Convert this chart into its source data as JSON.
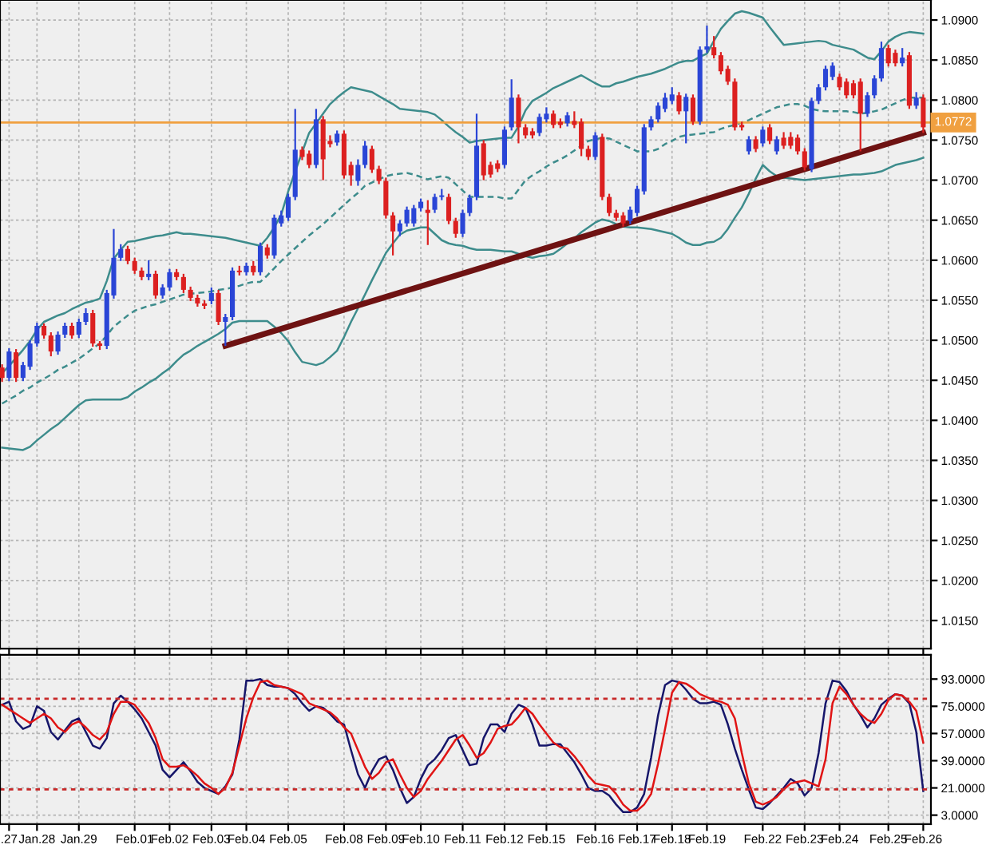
{
  "chart_data": [
    {
      "type": "candlestick",
      "tick_labels": "y",
      "grid": true,
      "categories": [
        null,
        null,
        null,
        null,
        null,
        null,
        null,
        null,
        null,
        null,
        null,
        null,
        null,
        null,
        null,
        null,
        null,
        null,
        null,
        null,
        null,
        null,
        null,
        null,
        null,
        null,
        null,
        null,
        null,
        null,
        null,
        null,
        null,
        null,
        null,
        null,
        null,
        null,
        null,
        null,
        null,
        null,
        null,
        null,
        null,
        null,
        null,
        null,
        null,
        null,
        null,
        null,
        null,
        null,
        null,
        null,
        null,
        null,
        null,
        null,
        null,
        null,
        null,
        null,
        null,
        null,
        null,
        null,
        null,
        null,
        null,
        null,
        null,
        null,
        null,
        null,
        null,
        null,
        null,
        null,
        null,
        null,
        null,
        null,
        null,
        null,
        null,
        null,
        null,
        null,
        null,
        null,
        null,
        null,
        null,
        null,
        null,
        null,
        null,
        null,
        null,
        null,
        null,
        null,
        null,
        null,
        null,
        null,
        null,
        null,
        null,
        null,
        null,
        null,
        null,
        null,
        null,
        null,
        null,
        null,
        null,
        null,
        null,
        null,
        null,
        null,
        null,
        null,
        null,
        null,
        null,
        null,
        null
      ],
      "ohlc": [
        [
          1.0466,
          1.047,
          1.0448,
          1.0453
        ],
        [
          1.0453,
          1.049,
          1.0449,
          1.0486
        ],
        [
          1.0485,
          1.0489,
          1.0448,
          1.0453
        ],
        [
          1.0453,
          1.0473,
          1.0449,
          1.0469
        ],
        [
          1.0467,
          1.05,
          1.0463,
          1.0496
        ],
        [
          1.0496,
          1.0522,
          1.0492,
          1.0518
        ],
        [
          1.0518,
          1.0521,
          1.0502,
          1.0506
        ],
        [
          1.0506,
          1.051,
          1.048,
          1.0486
        ],
        [
          1.0486,
          1.0511,
          1.0482,
          1.0507
        ],
        [
          1.0507,
          1.0522,
          1.0503,
          1.0518
        ],
        [
          1.0518,
          1.0522,
          1.0502,
          1.0506
        ],
        [
          1.0507,
          1.0527,
          1.0503,
          1.0523
        ],
        [
          1.0523,
          1.054,
          1.0519,
          1.0534
        ],
        [
          1.0534,
          1.0538,
          1.0492,
          1.0496
        ],
        [
          1.0496,
          1.0499,
          1.0488,
          1.0493
        ],
        [
          1.0493,
          1.0563,
          1.0489,
          1.0559
        ],
        [
          1.0556,
          1.0639,
          1.0552,
          1.0603
        ],
        [
          1.0603,
          1.062,
          1.0599,
          1.0614
        ],
        [
          1.0614,
          1.0618,
          1.0595,
          1.0599
        ],
        [
          1.0599,
          1.0603,
          1.0583,
          1.0587
        ],
        [
          1.0587,
          1.0591,
          1.0575,
          1.0579
        ],
        [
          1.0579,
          1.06,
          1.0575,
          1.0583
        ],
        [
          1.0583,
          1.0587,
          1.0552,
          1.0556
        ],
        [
          1.0556,
          1.057,
          1.0552,
          1.0566
        ],
        [
          1.0566,
          1.0589,
          1.0562,
          1.0585
        ],
        [
          1.0585,
          1.0589,
          1.0575,
          1.0579
        ],
        [
          1.0579,
          1.0583,
          1.0559,
          1.0563
        ],
        [
          1.0563,
          1.0567,
          1.0549,
          1.0553
        ],
        [
          1.0553,
          1.0557,
          1.0542,
          1.0546
        ],
        [
          1.0546,
          1.055,
          1.0539,
          1.0543
        ],
        [
          1.0549,
          1.0566,
          1.0545,
          1.0559
        ],
        [
          1.0559,
          1.0563,
          1.0519,
          1.0523
        ],
        [
          1.0523,
          1.0533,
          1.0493,
          1.0529
        ],
        [
          1.0529,
          1.0591,
          1.0525,
          1.0587
        ],
        [
          1.0587,
          1.0593,
          1.0581,
          1.0585
        ],
        [
          1.0585,
          1.0597,
          1.0581,
          1.0593
        ],
        [
          1.0593,
          1.0599,
          1.0581,
          1.0585
        ],
        [
          1.0585,
          1.0622,
          1.0581,
          1.0618
        ],
        [
          1.0616,
          1.062,
          1.0602,
          1.0606
        ],
        [
          1.0606,
          1.0657,
          1.0602,
          1.0653
        ],
        [
          1.0646,
          1.0662,
          1.0642,
          1.0656
        ],
        [
          1.0653,
          1.0683,
          1.0649,
          1.0679
        ],
        [
          1.0679,
          1.0789,
          1.0675,
          1.0738
        ],
        [
          1.0738,
          1.0742,
          1.0725,
          1.0729
        ],
        [
          1.0733,
          1.0737,
          1.0715,
          1.0719
        ],
        [
          1.0719,
          1.0789,
          1.0715,
          1.0776
        ],
        [
          1.0776,
          1.078,
          1.07,
          1.0726
        ],
        [
          1.0749,
          1.0756,
          1.0741,
          1.0745
        ],
        [
          1.0747,
          1.0762,
          1.0743,
          1.0758
        ],
        [
          1.0758,
          1.0762,
          1.0702,
          1.0706
        ],
        [
          1.0719,
          1.0723,
          1.0693,
          1.0706
        ],
        [
          1.0699,
          1.0726,
          1.0693,
          1.0719
        ],
        [
          1.0719,
          1.0749,
          1.0715,
          1.0743
        ],
        [
          1.0739,
          1.0743,
          1.0709,
          1.0713
        ],
        [
          1.0714,
          1.0718,
          1.0695,
          1.0699
        ],
        [
          1.0699,
          1.0703,
          1.0652,
          1.0656
        ],
        [
          1.0656,
          1.066,
          1.0606,
          1.0636
        ],
        [
          1.0636,
          1.065,
          1.063,
          1.0646
        ],
        [
          1.0646,
          1.0667,
          1.0642,
          1.0663
        ],
        [
          1.0646,
          1.0669,
          1.0642,
          1.0665
        ],
        [
          1.0665,
          1.0677,
          1.0661,
          1.0673
        ],
        [
          1.0663,
          1.0675,
          1.0619,
          1.0659
        ],
        [
          1.0663,
          1.0683,
          1.0659,
          1.0679
        ],
        [
          1.0679,
          1.0689,
          1.0675,
          1.0681
        ],
        [
          1.0679,
          1.0683,
          1.0645,
          1.0649
        ],
        [
          1.0649,
          1.0653,
          1.0628,
          1.0633
        ],
        [
          1.0633,
          1.0663,
          1.0629,
          1.0659
        ],
        [
          1.0659,
          1.0682,
          1.0655,
          1.0678
        ],
        [
          1.0679,
          1.0783,
          1.0675,
          1.0743
        ],
        [
          1.0746,
          1.075,
          1.07,
          1.0706
        ],
        [
          1.0719,
          1.0723,
          1.0703,
          1.0707
        ],
        [
          1.0721,
          1.0725,
          1.071,
          1.0714
        ],
        [
          1.0719,
          1.0767,
          1.0715,
          1.0763
        ],
        [
          1.0766,
          1.0826,
          1.0762,
          1.0803
        ],
        [
          1.0803,
          1.0807,
          1.0746,
          1.0766
        ],
        [
          1.0766,
          1.077,
          1.0752,
          1.0756
        ],
        [
          1.0761,
          1.0765,
          1.0752,
          1.0756
        ],
        [
          1.0759,
          1.0783,
          1.0755,
          1.0779
        ],
        [
          1.0776,
          1.0791,
          1.0772,
          1.0783
        ],
        [
          1.0783,
          1.0787,
          1.0765,
          1.0769
        ],
        [
          1.0773,
          1.0777,
          1.0765,
          1.0769
        ],
        [
          1.0771,
          1.0785,
          1.0767,
          1.0781
        ],
        [
          1.0774,
          1.0786,
          1.0765,
          1.0769
        ],
        [
          1.0773,
          1.0777,
          1.073,
          1.0739
        ],
        [
          1.0739,
          1.0743,
          1.0725,
          1.0729
        ],
        [
          1.0729,
          1.076,
          1.0725,
          1.0756
        ],
        [
          1.0754,
          1.0758,
          1.0675,
          1.0679
        ],
        [
          1.0679,
          1.0683,
          1.0655,
          1.0659
        ],
        [
          1.0659,
          1.0663,
          1.0649,
          1.0653
        ],
        [
          1.0656,
          1.066,
          1.0642,
          1.0646
        ],
        [
          1.0649,
          1.0667,
          1.0645,
          1.0663
        ],
        [
          1.0659,
          1.0693,
          1.0655,
          1.0689
        ],
        [
          1.0686,
          1.077,
          1.0682,
          1.0766
        ],
        [
          1.0766,
          1.078,
          1.0762,
          1.0776
        ],
        [
          1.0776,
          1.0797,
          1.0772,
          1.0793
        ],
        [
          1.0789,
          1.0809,
          1.0785,
          1.0803
        ],
        [
          1.0799,
          1.0816,
          1.0795,
          1.0807
        ],
        [
          1.0806,
          1.081,
          1.0782,
          1.0786
        ],
        [
          1.0786,
          1.0808,
          1.0746,
          1.0804
        ],
        [
          1.0803,
          1.0807,
          1.0769,
          1.0773
        ],
        [
          1.0773,
          1.0867,
          1.0769,
          1.0863
        ],
        [
          1.0863,
          1.0893,
          1.0859,
          1.0867
        ],
        [
          1.0866,
          1.088,
          1.0852,
          1.0856
        ],
        [
          1.0856,
          1.086,
          1.0832,
          1.0836
        ],
        [
          1.0839,
          1.0843,
          1.0819,
          1.0823
        ],
        [
          1.0823,
          1.0827,
          1.0762,
          1.0766
        ],
        [
          1.0769,
          1.0773,
          1.0762,
          1.0766
        ],
        [
          1.0736,
          1.0755,
          1.0732,
          1.0751
        ],
        [
          1.0751,
          1.0755,
          1.0735,
          1.0739
        ],
        [
          1.0746,
          1.0767,
          1.0742,
          1.0763
        ],
        [
          1.0766,
          1.077,
          1.0745,
          1.0749
        ],
        [
          1.0736,
          1.0755,
          1.0732,
          1.0751
        ],
        [
          1.0753,
          1.076,
          1.0739,
          1.0743
        ],
        [
          1.0754,
          1.076,
          1.0739,
          1.0743
        ],
        [
          1.0753,
          1.0757,
          1.0732,
          1.0736
        ],
        [
          1.0736,
          1.074,
          1.0712,
          1.0716
        ],
        [
          1.0714,
          1.0803,
          1.071,
          1.0799
        ],
        [
          1.0799,
          1.082,
          1.0795,
          1.0816
        ],
        [
          1.0816,
          1.0843,
          1.0812,
          1.0839
        ],
        [
          1.0829,
          1.0847,
          1.0825,
          1.0843
        ],
        [
          1.0829,
          1.0833,
          1.0812,
          1.0816
        ],
        [
          1.0823,
          1.0827,
          1.0802,
          1.0806
        ],
        [
          1.0821,
          1.0825,
          1.0802,
          1.0806
        ],
        [
          1.0823,
          1.0827,
          1.0736,
          1.0783
        ],
        [
          1.0783,
          1.081,
          1.0779,
          1.0806
        ],
        [
          1.0806,
          1.0831,
          1.0802,
          1.0827
        ],
        [
          1.0827,
          1.0873,
          1.0823,
          1.0865
        ],
        [
          1.0865,
          1.0869,
          1.0842,
          1.0846
        ],
        [
          1.0859,
          1.0863,
          1.0842,
          1.0846
        ],
        [
          1.0846,
          1.0865,
          1.0842,
          1.0853
        ],
        [
          1.0856,
          1.086,
          1.0789,
          1.0793
        ],
        [
          1.0793,
          1.081,
          1.0789,
          1.0803
        ],
        [
          1.0803,
          1.0807,
          1.0759,
          1.0766
        ]
      ],
      "colors": [
        "#dc2020",
        "#2a45d6",
        "#dc2020",
        "#2a45d6",
        "#2a45d6",
        "#2a45d6",
        "#dc2020",
        "#dc2020",
        "#2a45d6",
        "#2a45d6",
        "#dc2020",
        "#2a45d6",
        "#2a45d6",
        "#dc2020",
        "#dc2020",
        "#2a45d6",
        "#2a45d6",
        "#2a45d6",
        "#dc2020",
        "#dc2020",
        "#dc2020",
        "#2a45d6",
        "#dc2020",
        "#2a45d6",
        "#2a45d6",
        "#dc2020",
        "#dc2020",
        "#dc2020",
        "#dc2020",
        "#dc2020",
        "#2a45d6",
        "#dc2020",
        "#2a45d6",
        "#2a45d6",
        "#dc2020",
        "#2a45d6",
        "#dc2020",
        "#2a45d6",
        "#dc2020",
        "#2a45d6",
        "#2a45d6",
        "#2a45d6",
        "#2a45d6",
        "#dc2020",
        "#dc2020",
        "#2a45d6",
        "#dc2020",
        "#dc2020",
        "#2a45d6",
        "#dc2020",
        "#dc2020",
        "#2a45d6",
        "#2a45d6",
        "#dc2020",
        "#dc2020",
        "#dc2020",
        "#dc2020",
        "#2a45d6",
        "#2a45d6",
        "#2a45d6",
        "#2a45d6",
        "#dc2020",
        "#2a45d6",
        "#2a45d6",
        "#dc2020",
        "#dc2020",
        "#2a45d6",
        "#2a45d6",
        "#2a45d6",
        "#dc2020",
        "#dc2020",
        "#dc2020",
        "#2a45d6",
        "#2a45d6",
        "#dc2020",
        "#dc2020",
        "#dc2020",
        "#2a45d6",
        "#2a45d6",
        "#dc2020",
        "#dc2020",
        "#2a45d6",
        "#dc2020",
        "#dc2020",
        "#dc2020",
        "#2a45d6",
        "#dc2020",
        "#dc2020",
        "#dc2020",
        "#dc2020",
        "#2a45d6",
        "#2a45d6",
        "#2a45d6",
        "#2a45d6",
        "#2a45d6",
        "#2a45d6",
        "#2a45d6",
        "#dc2020",
        "#2a45d6",
        "#dc2020",
        "#2a45d6",
        "#2a45d6",
        "#dc2020",
        "#dc2020",
        "#dc2020",
        "#dc2020",
        "#dc2020",
        "#2a45d6",
        "#dc2020",
        "#2a45d6",
        "#dc2020",
        "#2a45d6",
        "#dc2020",
        "#dc2020",
        "#dc2020",
        "#dc2020",
        "#2a45d6",
        "#2a45d6",
        "#2a45d6",
        "#2a45d6",
        "#dc2020",
        "#dc2020",
        "#dc2020",
        "#dc2020",
        "#2a45d6",
        "#2a45d6",
        "#2a45d6",
        "#dc2020",
        "#dc2020",
        "#2a45d6",
        "#dc2020",
        "#2a45d6",
        "#dc2020"
      ],
      "series": [
        {
          "type": "line",
          "color": "#3d8c8c",
          "values": [
            1.0459,
            1.0468,
            1.0478,
            1.0488,
            1.0499,
            1.0513,
            1.0523,
            1.0527,
            1.0531,
            1.0534,
            1.0539,
            1.0543,
            1.0547,
            1.0549,
            1.0552,
            1.0574,
            1.0602,
            1.0613,
            1.0623,
            1.0624,
            1.0626,
            1.0628,
            1.063,
            1.0631,
            1.0633,
            1.0635,
            1.0633,
            1.0633,
            1.0632,
            1.0631,
            1.063,
            1.0629,
            1.0628,
            1.0626,
            1.0624,
            1.0622,
            1.062,
            1.0618,
            1.0628,
            1.0641,
            1.0657,
            1.0686,
            1.0711,
            1.0735,
            1.0759,
            1.0771,
            1.0783,
            1.0795,
            1.0803,
            1.081,
            1.0816,
            1.0814,
            1.0812,
            1.081,
            1.0805,
            1.08,
            1.0795,
            1.0789,
            1.0788,
            1.0787,
            1.0786,
            1.0785,
            1.0782,
            1.0775,
            1.0767,
            1.076,
            1.0754,
            1.0747,
            1.0749,
            1.075,
            1.0751,
            1.0752,
            1.0753,
            1.0753,
            1.0767,
            1.0787,
            1.0799,
            1.0804,
            1.0809,
            1.0815,
            1.0819,
            1.0823,
            1.0827,
            1.0831,
            1.0826,
            1.0821,
            1.0817,
            1.0817,
            1.0821,
            1.0823,
            1.0826,
            1.0829,
            1.0831,
            1.0833,
            1.0836,
            1.0839,
            1.0843,
            1.0847,
            1.0849,
            1.0849,
            1.0854,
            1.0858,
            1.0874,
            1.0889,
            1.0899,
            1.0908,
            1.0911,
            1.0909,
            1.0906,
            1.0903,
            1.0891,
            1.088,
            1.0869,
            1.087,
            1.0871,
            1.0872,
            1.0873,
            1.0874,
            1.0873,
            1.0869,
            1.0867,
            1.0865,
            1.0863,
            1.0858,
            1.0853,
            1.0851,
            1.0861,
            1.0873,
            1.0879,
            1.0883,
            1.0885,
            1.0884,
            1.0883
          ]
        },
        {
          "type": "line",
          "color": "#3d8c8c",
          "line_style": "dashed",
          "values": [
            1.0421,
            1.0426,
            1.0431,
            1.0437,
            1.0441,
            1.0447,
            1.0452,
            1.0457,
            1.0463,
            1.0467,
            1.0472,
            1.0477,
            1.0483,
            1.049,
            1.0496,
            1.0506,
            1.0517,
            1.0524,
            1.0531,
            1.0537,
            1.054,
            1.0543,
            1.0545,
            1.0548,
            1.0551,
            1.0554,
            1.0557,
            1.0558,
            1.0559,
            1.056,
            1.0561,
            1.0563,
            1.0564,
            1.0566,
            1.0568,
            1.0571,
            1.0573,
            1.0573,
            1.0581,
            1.059,
            1.0599,
            1.0607,
            1.0615,
            1.0623,
            1.0631,
            1.0638,
            1.0645,
            1.0653,
            1.0661,
            1.0669,
            1.0677,
            1.0684,
            1.0693,
            1.0697,
            1.0701,
            1.0705,
            1.0707,
            1.0708,
            1.0709,
            1.0707,
            1.0704,
            1.0701,
            1.0703,
            1.0705,
            1.0703,
            1.0695,
            1.0687,
            1.0679,
            1.0679,
            1.0679,
            1.0679,
            1.0679,
            1.0677,
            1.0677,
            1.0688,
            1.07,
            1.0706,
            1.0711,
            1.0717,
            1.0722,
            1.0726,
            1.0731,
            1.0737,
            1.0743,
            1.0749,
            1.0751,
            1.0753,
            1.0752,
            1.0748,
            1.0744,
            1.074,
            1.0736,
            1.0736,
            1.0736,
            1.0739,
            1.0745,
            1.0749,
            1.0754,
            1.0756,
            1.0757,
            1.0758,
            1.0759,
            1.076,
            1.0764,
            1.0767,
            1.0769,
            1.0772,
            1.0775,
            1.0779,
            1.0783,
            1.0787,
            1.0791,
            1.0793,
            1.0795,
            1.0795,
            1.0793,
            1.0789,
            1.0787,
            1.0786,
            1.0786,
            1.0786,
            1.0786,
            1.0785,
            1.0783,
            1.0784,
            1.0786,
            1.0788,
            1.0792,
            1.0796,
            1.08,
            1.0803,
            1.0803,
            1.0803
          ]
        },
        {
          "type": "line",
          "color": "#3d8c8c",
          "values": [
            1.0366,
            1.0365,
            1.0364,
            1.0363,
            1.0367,
            1.0375,
            1.0382,
            1.0389,
            1.0395,
            1.0403,
            1.0411,
            1.0419,
            1.0425,
            1.0426,
            1.0426,
            1.0426,
            1.0426,
            1.0426,
            1.0429,
            1.0436,
            1.0441,
            1.0447,
            1.0452,
            1.0459,
            1.0465,
            1.0474,
            1.0482,
            1.0487,
            1.0493,
            1.0498,
            1.0503,
            1.0508,
            1.0514,
            1.0522,
            1.0524,
            1.0524,
            1.0524,
            1.0524,
            1.0524,
            1.0517,
            1.0509,
            1.0499,
            1.0485,
            1.0473,
            1.0471,
            1.0469,
            1.0472,
            1.0479,
            1.0487,
            1.0504,
            1.0523,
            1.054,
            1.0557,
            1.0575,
            1.0592,
            1.0609,
            1.0621,
            1.0632,
            1.0637,
            1.0639,
            1.0641,
            1.0641,
            1.0633,
            1.0625,
            1.0621,
            1.0619,
            1.0618,
            1.0615,
            1.0613,
            1.0613,
            1.0613,
            1.0612,
            1.0611,
            1.0611,
            1.0608,
            1.0605,
            1.0603,
            1.0605,
            1.0606,
            1.0608,
            1.0614,
            1.0621,
            1.0627,
            1.0635,
            1.0641,
            1.0647,
            1.0651,
            1.0649,
            1.0645,
            1.0642,
            1.0641,
            1.0641,
            1.064,
            1.0639,
            1.0637,
            1.0635,
            1.0633,
            1.0628,
            1.0622,
            1.0619,
            1.0619,
            1.0622,
            1.0623,
            1.0628,
            1.0639,
            1.0653,
            1.0666,
            1.0683,
            1.0702,
            1.0719,
            1.0711,
            1.0705,
            1.0703,
            1.0702,
            1.0701,
            1.07,
            1.0701,
            1.0702,
            1.0703,
            1.0704,
            1.0705,
            1.0706,
            1.0707,
            1.0707,
            1.0708,
            1.0709,
            1.0711,
            1.0715,
            1.0719,
            1.0721,
            1.0723,
            1.0725,
            1.0728
          ]
        },
        {
          "type": "line",
          "color": "#6e1212",
          "values": [
            null,
            null,
            null,
            null,
            null,
            null,
            null,
            null,
            null,
            null,
            null,
            null,
            null,
            null,
            null,
            null,
            null,
            null,
            null,
            null,
            null,
            null,
            null,
            null,
            null,
            null,
            null,
            null,
            null,
            null,
            null,
            null,
            1.0493,
            null,
            null,
            null,
            null,
            null,
            null,
            null,
            null,
            null,
            null,
            null,
            null,
            null,
            null,
            null,
            null,
            null,
            null,
            null,
            null,
            null,
            null,
            null,
            null,
            null,
            null,
            null,
            null,
            null,
            null,
            null,
            null,
            null,
            null,
            null,
            null,
            null,
            null,
            null,
            null,
            null,
            null,
            null,
            null,
            null,
            null,
            null,
            null,
            null,
            null,
            null,
            null,
            null,
            null,
            null,
            null,
            null,
            null,
            null,
            null,
            null,
            null,
            null,
            null,
            null,
            null,
            null,
            null,
            null,
            null,
            null,
            null,
            null,
            null,
            null,
            null,
            null,
            null,
            null,
            null,
            null,
            null,
            null,
            null,
            null,
            null,
            null,
            null,
            null,
            null,
            null,
            null,
            null,
            null,
            null,
            null,
            null,
            null,
            null,
            1.0759
          ]
        }
      ],
      "ylim": [
        1.0115,
        1.0925
      ],
      "yticks": [
        {
          "value": 1.015,
          "label": "1.0150"
        },
        {
          "value": 1.02,
          "label": "1.0200"
        },
        {
          "value": 1.025,
          "label": "1.0250"
        },
        {
          "value": 1.03,
          "label": "1.0300"
        },
        {
          "value": 1.035,
          "label": "1.0350"
        },
        {
          "value": 1.04,
          "label": "1.0400"
        },
        {
          "value": 1.045,
          "label": "1.0450"
        },
        {
          "value": 1.05,
          "label": "1.0500"
        },
        {
          "value": 1.055,
          "label": "1.0550"
        },
        {
          "value": 1.06,
          "label": "1.0600"
        },
        {
          "value": 1.065,
          "label": "1.0650"
        },
        {
          "value": 1.07,
          "label": "1.0700"
        },
        {
          "value": 1.075,
          "label": "1.0750"
        },
        {
          "value": 1.08,
          "label": "1.0800"
        },
        {
          "value": 1.085,
          "label": "1.0850"
        },
        {
          "value": 1.09,
          "label": "1.0900"
        }
      ],
      "ref_lines": [
        {
          "axis": "y",
          "value": 1.0772,
          "label": "1.0772",
          "color": "#f0a040",
          "line_style": "solid"
        }
      ]
    },
    {
      "type": "line",
      "grid": true,
      "categories": [
        null,
        ".27",
        null,
        null,
        null,
        "Jan.28",
        null,
        null,
        null,
        null,
        null,
        "Jan.29",
        null,
        null,
        null,
        null,
        null,
        null,
        null,
        "Feb.01",
        null,
        null,
        null,
        null,
        "Feb.02",
        null,
        null,
        null,
        null,
        null,
        "Feb.03",
        null,
        null,
        null,
        null,
        "Feb.04",
        null,
        null,
        null,
        null,
        null,
        "Feb.05",
        null,
        null,
        null,
        null,
        null,
        null,
        null,
        "Feb.08",
        null,
        null,
        null,
        null,
        null,
        "Feb.09",
        null,
        null,
        null,
        null,
        "Feb.10",
        null,
        null,
        null,
        null,
        null,
        "Feb.11",
        null,
        null,
        null,
        null,
        null,
        "Feb.12",
        null,
        null,
        null,
        null,
        null,
        "Feb.15",
        null,
        null,
        null,
        null,
        null,
        null,
        "Feb.16",
        null,
        null,
        null,
        null,
        null,
        "Feb.17",
        null,
        null,
        null,
        null,
        "Feb.18",
        null,
        null,
        null,
        null,
        "Feb.19",
        null,
        null,
        null,
        null,
        null,
        null,
        null,
        "Feb.22",
        null,
        null,
        null,
        null,
        null,
        "Feb.23",
        null,
        null,
        null,
        null,
        "Feb.24",
        null,
        null,
        null,
        null,
        null,
        null,
        "Feb.25",
        null,
        null,
        null,
        null,
        "Feb.26"
      ],
      "series": [
        {
          "color": "#16166a",
          "values": [
            76,
            78,
            65,
            60,
            62,
            75,
            72,
            58,
            53,
            59,
            65,
            67,
            58,
            49,
            47,
            54,
            77,
            82,
            78,
            73,
            67,
            58,
            49,
            33,
            28,
            33,
            38,
            32,
            25,
            21,
            19,
            17,
            22,
            30,
            53,
            92,
            92,
            93,
            89,
            88,
            88,
            87,
            83,
            77,
            72,
            75,
            74,
            70,
            65,
            63,
            46,
            30,
            21,
            32,
            40,
            42,
            33,
            21,
            11,
            15,
            27,
            36,
            40,
            46,
            54,
            56,
            46,
            36,
            37,
            54,
            63,
            63,
            58,
            70,
            76,
            74,
            63,
            49,
            49,
            50,
            50,
            44,
            38,
            30,
            21,
            19,
            19,
            16,
            10,
            5,
            5,
            8,
            17,
            41,
            69,
            89,
            92,
            91,
            86,
            80,
            77,
            77,
            78,
            76,
            63,
            47,
            33,
            20,
            8,
            7,
            11,
            16,
            21,
            27,
            24,
            16,
            21,
            44,
            77,
            92,
            91,
            85,
            76,
            69,
            61,
            67,
            76,
            80,
            83,
            82,
            77,
            58,
            19
          ]
        },
        {
          "color": "#e01414",
          "values": [
            76,
            73,
            70,
            67,
            64,
            67,
            70,
            67,
            61,
            58,
            63,
            65,
            61,
            56,
            53,
            58,
            70,
            78,
            78,
            76,
            70,
            64,
            54,
            40,
            35,
            35,
            36,
            33,
            29,
            24,
            21,
            17,
            21,
            31,
            49,
            67,
            81,
            91,
            92,
            89,
            88,
            87,
            85,
            83,
            77,
            75,
            73,
            71,
            67,
            61,
            57,
            46,
            35,
            27,
            31,
            38,
            40,
            30,
            21,
            15,
            19,
            27,
            33,
            39,
            46,
            53,
            56,
            49,
            41,
            44,
            51,
            60,
            62,
            63,
            68,
            74,
            70,
            63,
            57,
            51,
            48,
            47,
            42,
            36,
            29,
            24,
            23,
            22,
            17,
            10,
            6,
            6,
            10,
            17,
            37,
            60,
            84,
            91,
            90,
            87,
            83,
            81,
            79,
            78,
            76,
            67,
            44,
            24,
            12,
            10,
            12,
            15,
            20,
            24,
            25,
            26,
            24,
            22,
            40,
            77,
            88,
            83,
            76,
            70,
            66,
            64,
            70,
            79,
            83,
            82,
            78,
            72,
            51
          ]
        }
      ],
      "ylim": [
        -3,
        109
      ],
      "yticks": [
        {
          "value": 3,
          "label": "3.0000"
        },
        {
          "value": 21,
          "label": "21.0000"
        },
        {
          "value": 39,
          "label": "39.0000"
        },
        {
          "value": 57,
          "label": "57.0000"
        },
        {
          "value": 75,
          "label": "75.0000"
        },
        {
          "value": 93,
          "label": "93.0000"
        }
      ],
      "ref_lines": [
        {
          "axis": "y",
          "value": 80,
          "color": "#c82828",
          "line_style": "dotted"
        },
        {
          "axis": "y",
          "value": 20,
          "color": "#c82828",
          "line_style": "dotted"
        }
      ]
    }
  ]
}
